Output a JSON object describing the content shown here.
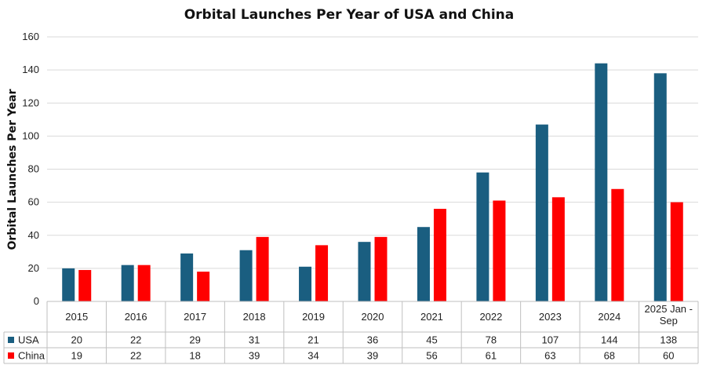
{
  "chart_data": {
    "type": "bar",
    "title": "Orbital Launches Per Year of USA and China",
    "ylabel": "Orbital Launches  Per Year",
    "xlabel": "",
    "ylim": [
      0,
      160
    ],
    "yticks": [
      0,
      20,
      40,
      60,
      80,
      100,
      120,
      140,
      160
    ],
    "grid": true,
    "legend": "data-table-left",
    "categories": [
      "2015",
      "2016",
      "2017",
      "2018",
      "2019",
      "2020",
      "2021",
      "2022",
      "2023",
      "2024",
      [
        "2025 Jan -",
        "Sep"
      ]
    ],
    "series": [
      {
        "name": "USA",
        "color": "#1a5e80",
        "values": [
          20,
          22,
          29,
          31,
          21,
          36,
          45,
          78,
          107,
          144,
          138
        ]
      },
      {
        "name": "China",
        "color": "#ff0000",
        "values": [
          19,
          22,
          18,
          39,
          34,
          39,
          56,
          61,
          63,
          68,
          60
        ]
      }
    ]
  }
}
